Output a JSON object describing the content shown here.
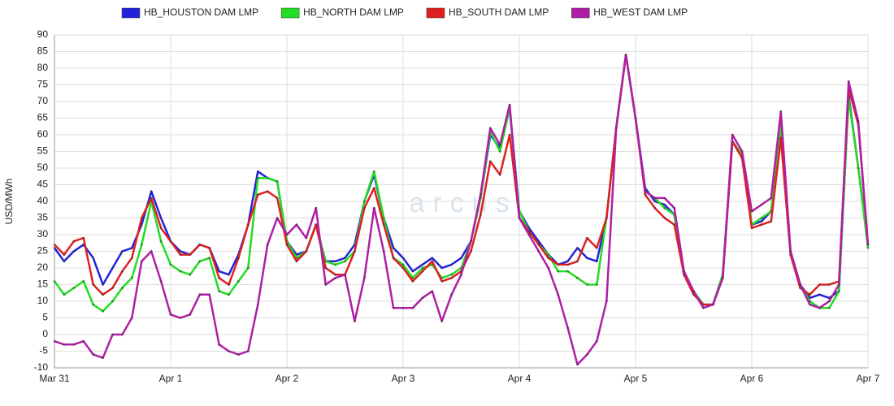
{
  "chart_data": {
    "type": "line",
    "y_label": "USD/MWh",
    "watermark": "arcus",
    "categories": [
      "Mar 31",
      null,
      null,
      null,
      null,
      null,
      null,
      null,
      null,
      null,
      null,
      null,
      "Apr 1",
      null,
      null,
      null,
      null,
      null,
      null,
      null,
      null,
      null,
      null,
      null,
      "Apr 2",
      null,
      null,
      null,
      null,
      null,
      null,
      null,
      null,
      null,
      null,
      null,
      "Apr 3",
      null,
      null,
      null,
      null,
      null,
      null,
      null,
      null,
      null,
      null,
      null,
      "Apr 4",
      null,
      null,
      null,
      null,
      null,
      null,
      null,
      null,
      null,
      null,
      null,
      "Apr 5",
      null,
      null,
      null,
      null,
      null,
      null,
      null,
      null,
      null,
      null,
      null,
      "Apr 6",
      null,
      null,
      null,
      null,
      null,
      null,
      null,
      null,
      null,
      null,
      null,
      "Apr 7"
    ],
    "series": [
      {
        "name": "HB_HOUSTON DAM LMP",
        "color": "#2222dd",
        "values": [
          26,
          22,
          25,
          27,
          23,
          15,
          20,
          25,
          26,
          33,
          43,
          35,
          28,
          25,
          24,
          27,
          26,
          19,
          18,
          24,
          33,
          49,
          47,
          46,
          28,
          24,
          25,
          33,
          22,
          22,
          23,
          27,
          40,
          48,
          35,
          26,
          23,
          19,
          21,
          23,
          20,
          21,
          23,
          28,
          41,
          60,
          56,
          68,
          37,
          32,
          28,
          24,
          21,
          22,
          26,
          23,
          22,
          35,
          62,
          84,
          65,
          44,
          40,
          39,
          36,
          18,
          13,
          9,
          9,
          18,
          58,
          54,
          33,
          34,
          37,
          62,
          25,
          15,
          11,
          12,
          11,
          13,
          72,
          50,
          27
        ]
      },
      {
        "name": "HB_NORTH DAM LMP",
        "color": "#22dd22",
        "values": [
          16,
          12,
          14,
          16,
          9,
          7,
          10,
          14,
          17,
          27,
          40,
          28,
          21,
          19,
          18,
          22,
          23,
          13,
          12,
          16,
          20,
          47,
          47,
          46,
          28,
          23,
          25,
          33,
          22,
          21,
          22,
          25,
          40,
          49,
          35,
          23,
          21,
          17,
          20,
          21,
          17,
          18,
          20,
          28,
          41,
          61,
          55,
          68,
          37,
          31,
          27,
          24,
          19,
          19,
          17,
          15,
          15,
          35,
          62,
          84,
          65,
          43,
          41,
          38,
          36,
          18,
          13,
          9,
          9,
          18,
          58,
          54,
          33,
          35,
          37,
          63,
          25,
          15,
          10,
          8,
          8,
          13,
          71,
          50,
          26
        ]
      },
      {
        "name": "HB_SOUTH DAM LMP",
        "color": "#e02020",
        "values": [
          27,
          24,
          28,
          29,
          15,
          12,
          14,
          19,
          23,
          35,
          41,
          32,
          28,
          24,
          24,
          27,
          26,
          17,
          15,
          23,
          33,
          42,
          43,
          41,
          27,
          22,
          25,
          33,
          20,
          18,
          18,
          25,
          38,
          44,
          33,
          23,
          20,
          16,
          19,
          22,
          16,
          17,
          19,
          25,
          36,
          52,
          48,
          60,
          35,
          31,
          27,
          23,
          21,
          21,
          22,
          29,
          26,
          35,
          62,
          84,
          65,
          42,
          38,
          35,
          33,
          18,
          12,
          9,
          9,
          17,
          58,
          53,
          32,
          33,
          34,
          59,
          24,
          14,
          12,
          15,
          15,
          16,
          74,
          63,
          27
        ]
      },
      {
        "name": "HB_WEST DAM LMP",
        "color": "#b01ea6",
        "values": [
          -2,
          -3,
          -3,
          -2,
          -6,
          -7,
          0,
          0,
          5,
          22,
          25,
          16,
          6,
          5,
          6,
          12,
          12,
          -3,
          -5,
          -6,
          -5,
          9,
          27,
          35,
          30,
          33,
          29,
          38,
          15,
          17,
          18,
          4,
          17,
          38,
          25,
          8,
          8,
          8,
          11,
          13,
          4,
          12,
          18,
          28,
          42,
          62,
          57,
          69,
          35,
          30,
          25,
          20,
          12,
          2,
          -9,
          -6,
          -2,
          10,
          62,
          84,
          65,
          43,
          41,
          41,
          38,
          19,
          13,
          8,
          9,
          17,
          60,
          55,
          37,
          39,
          41,
          67,
          25,
          15,
          9,
          8,
          10,
          15,
          76,
          64,
          27
        ]
      }
    ],
    "ylim": [
      -10,
      90
    ],
    "yticks": [
      -10,
      -5,
      0,
      5,
      10,
      15,
      20,
      25,
      30,
      35,
      40,
      45,
      50,
      55,
      60,
      65,
      70,
      75,
      80,
      85,
      90
    ],
    "grid": true
  }
}
